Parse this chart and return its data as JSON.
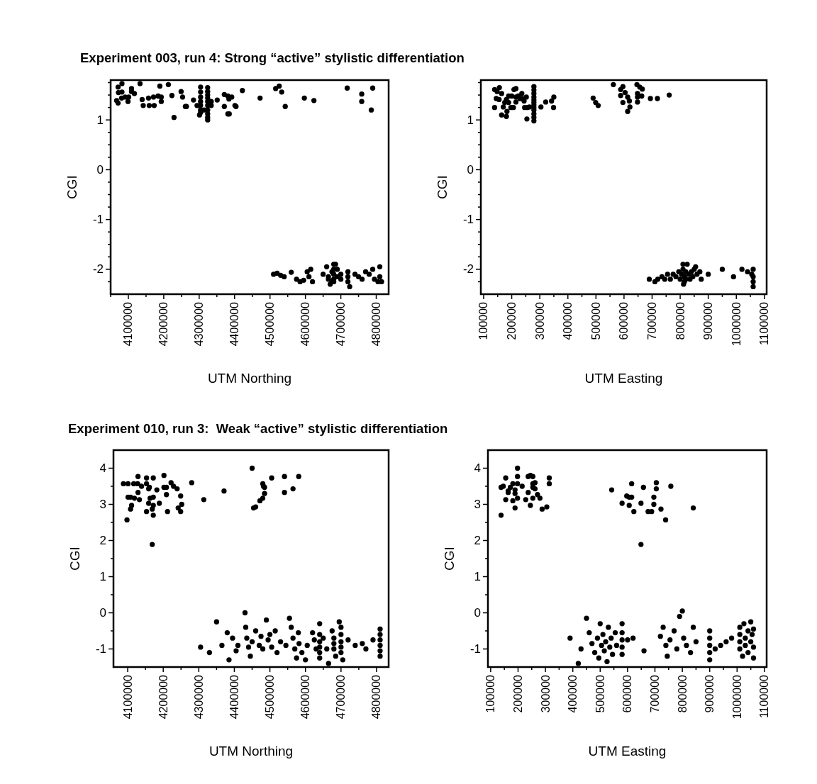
{
  "chart_data": [
    {
      "type": "scatter",
      "title": "Experiment 003, run 4: Strong “active” stylistic differentiation",
      "xlabel": "UTM Northing",
      "ylabel": "CGI",
      "marker": "circle",
      "color": "#000000",
      "xlim": [
        4050000,
        4835000
      ],
      "ylim": [
        -2.5,
        1.8
      ],
      "xticks": [
        {
          "value": 4050000,
          "label": null
        },
        4100000,
        {
          "value": 4150000,
          "label": null
        },
        4200000,
        {
          "value": 4250000,
          "label": null
        },
        4300000,
        {
          "value": 4350000,
          "label": null
        },
        4400000,
        {
          "value": 4450000,
          "label": null
        },
        4500000,
        {
          "value": 4550000,
          "label": null
        },
        4600000,
        {
          "value": 4650000,
          "label": null
        },
        4700000,
        {
          "value": 4750000,
          "label": null
        },
        4800000
      ],
      "yticks": [
        {
          "value": -2.25,
          "label": null
        },
        -2,
        {
          "value": -1.75,
          "label": null
        },
        {
          "value": -1.5,
          "label": null
        },
        {
          "value": -1.25,
          "label": null
        },
        -1,
        {
          "value": -0.75,
          "label": null
        },
        {
          "value": -0.5,
          "label": null
        },
        {
          "value": -0.25,
          "label": null
        },
        0,
        {
          "value": 0.25,
          "label": null
        },
        {
          "value": 0.5,
          "label": null
        },
        {
          "value": 0.75,
          "label": null
        },
        1,
        {
          "value": 1.25,
          "label": null
        },
        {
          "value": 1.5,
          "label": null
        },
        {
          "value": 1.75,
          "label": null
        }
      ],
      "x": [
        4071000,
        4082000,
        4072000,
        4082000,
        4067000,
        4071000,
        4081000,
        4091000,
        4101000,
        4099000,
        4109000,
        4109000,
        4117000,
        4133000,
        4139000,
        4142000,
        4157000,
        4159000,
        4171000,
        4173000,
        4184000,
        4189000,
        4193000,
        4193000,
        4213000,
        4223000,
        4229000,
        4249000,
        4253000,
        4261000,
        4264000,
        4284000,
        4294000,
        4301000,
        4304000,
        4304000,
        4304000,
        4304000,
        4304000,
        4304000,
        4304000,
        4314000,
        4324000,
        4324000,
        4324000,
        4324000,
        4324000,
        4324000,
        4324000,
        4324000,
        4324000,
        4324000,
        4334000,
        4334000,
        4351000,
        4371000,
        4371000,
        4381000,
        4384000,
        4392000,
        4401000,
        4404000,
        4381000,
        4385000,
        4422000,
        4472000,
        4516000,
        4526000,
        4533000,
        4543000,
        4597000,
        4624000,
        4718000,
        4759000,
        4759000,
        4786000,
        4790000,
        4510000,
        4520000,
        4530000,
        4540000,
        4560000,
        4575000,
        4585000,
        4595000,
        4605000,
        4610000,
        4615000,
        4620000,
        4650000,
        4660000,
        4665000,
        4670000,
        4675000,
        4680000,
        4680000,
        4680000,
        4680000,
        4680000,
        4685000,
        4690000,
        4690000,
        4700000,
        4720000,
        4720000,
        4720000,
        4725000,
        4740000,
        4750000,
        4760000,
        4770000,
        4780000,
        4790000,
        4795000,
        4805000,
        4810000,
        4810000,
        4815000,
        4665000,
        4675000,
        4700000
      ],
      "values": [
        1.66,
        1.73,
        1.55,
        1.56,
        1.39,
        1.34,
        1.44,
        1.46,
        1.46,
        1.37,
        1.63,
        1.57,
        1.53,
        1.73,
        1.41,
        1.29,
        1.44,
        1.29,
        1.46,
        1.29,
        1.48,
        1.68,
        1.46,
        1.37,
        1.71,
        1.49,
        1.05,
        1.57,
        1.46,
        1.27,
        1.27,
        1.4,
        1.29,
        1.1,
        1.66,
        1.56,
        1.46,
        1.37,
        1.29,
        1.2,
        1.15,
        1.2,
        1.65,
        1.57,
        1.5,
        1.44,
        1.37,
        1.29,
        1.2,
        1.12,
        1.05,
        1.0,
        1.37,
        1.29,
        1.4,
        1.51,
        1.27,
        1.48,
        1.42,
        1.46,
        1.29,
        1.27,
        1.12,
        1.12,
        1.59,
        1.44,
        1.63,
        1.68,
        1.56,
        1.27,
        1.44,
        1.39,
        1.64,
        1.52,
        1.37,
        1.2,
        1.64,
        -2.1,
        -2.08,
        -2.12,
        -2.15,
        -2.06,
        -2.2,
        -2.25,
        -2.22,
        -2.05,
        -2.15,
        -2.0,
        -2.25,
        -2.1,
        -1.95,
        -2.2,
        -2.3,
        -2.05,
        -1.9,
        -2.0,
        -2.1,
        -2.2,
        -2.25,
        -1.9,
        -2.15,
        -2.0,
        -2.2,
        -2.05,
        -2.15,
        -2.25,
        -2.35,
        -2.1,
        -2.15,
        -2.2,
        -2.05,
        -2.1,
        -2.0,
        -2.2,
        -2.25,
        -1.95,
        -2.15,
        -2.25,
        -2.15,
        -2.25,
        -2.1
      ]
    },
    {
      "type": "scatter",
      "xlabel": "UTM Easting",
      "ylabel": "CGI",
      "marker": "circle",
      "color": "#000000",
      "xlim": [
        90000,
        1108000
      ],
      "ylim": [
        -2.5,
        1.8
      ],
      "xticks": [
        100000,
        {
          "value": 150000,
          "label": null
        },
        200000,
        {
          "value": 250000,
          "label": null
        },
        300000,
        {
          "value": 350000,
          "label": null
        },
        400000,
        {
          "value": 450000,
          "label": null
        },
        500000,
        {
          "value": 550000,
          "label": null
        },
        600000,
        {
          "value": 650000,
          "label": null
        },
        700000,
        {
          "value": 750000,
          "label": null
        },
        800000,
        {
          "value": 850000,
          "label": null
        },
        900000,
        {
          "value": 950000,
          "label": null
        },
        1000000,
        {
          "value": 1050000,
          "label": null
        },
        1100000
      ],
      "yticks": [
        {
          "value": -2.25,
          "label": null
        },
        -2,
        {
          "value": -1.75,
          "label": null
        },
        {
          "value": -1.5,
          "label": null
        },
        {
          "value": -1.25,
          "label": null
        },
        -1,
        {
          "value": -0.75,
          "label": null
        },
        {
          "value": -0.5,
          "label": null
        },
        {
          "value": -0.25,
          "label": null
        },
        0,
        {
          "value": 0.25,
          "label": null
        },
        {
          "value": 0.5,
          "label": null
        },
        {
          "value": 0.75,
          "label": null
        },
        1,
        {
          "value": 1.25,
          "label": null
        },
        {
          "value": 1.5,
          "label": null
        },
        {
          "value": 1.75,
          "label": null
        }
      ],
      "x": [
        139000,
        148000,
        156000,
        164000,
        139000,
        145000,
        155000,
        164000,
        170000,
        175000,
        181000,
        183000,
        181000,
        189000,
        189000,
        197000,
        200000,
        206000,
        208000,
        215000,
        215000,
        215000,
        223000,
        229000,
        236000,
        237000,
        244000,
        246000,
        252000,
        254000,
        256000,
        263000,
        279000,
        279000,
        279000,
        279000,
        279000,
        279000,
        279000,
        279000,
        279000,
        279000,
        279000,
        279000,
        304000,
        321000,
        342000,
        350000,
        349000,
        490000,
        499000,
        508000,
        562000,
        596000,
        588000,
        604000,
        588000,
        596000,
        613000,
        619000,
        613000,
        621000,
        646000,
        648000,
        648000,
        648000,
        656000,
        665000,
        663000,
        694000,
        719000,
        761000,
        690000,
        710000,
        720000,
        735000,
        745000,
        755000,
        765000,
        775000,
        785000,
        795000,
        800000,
        805000,
        810000,
        810000,
        815000,
        815000,
        820000,
        820000,
        825000,
        830000,
        835000,
        840000,
        845000,
        850000,
        855000,
        860000,
        870000,
        875000,
        900000,
        950000,
        990000,
        1020000,
        1040000,
        1055000,
        1060000,
        1060000,
        1060000,
        1060000,
        812000
      ],
      "values": [
        1.61,
        1.57,
        1.65,
        1.53,
        1.25,
        1.43,
        1.41,
        1.1,
        1.26,
        1.35,
        1.41,
        1.17,
        1.07,
        1.35,
        1.48,
        1.25,
        1.48,
        1.25,
        1.61,
        1.63,
        1.46,
        1.36,
        1.48,
        1.43,
        1.53,
        1.43,
        1.38,
        1.25,
        1.46,
        1.02,
        1.25,
        1.26,
        1.67,
        1.6,
        1.53,
        1.46,
        1.4,
        1.35,
        1.3,
        1.25,
        1.2,
        1.12,
        1.05,
        0.98,
        1.26,
        1.36,
        1.38,
        1.46,
        1.25,
        1.44,
        1.35,
        1.29,
        1.71,
        1.67,
        1.61,
        1.55,
        1.49,
        1.35,
        1.46,
        1.38,
        1.17,
        1.26,
        1.71,
        1.53,
        1.46,
        1.36,
        1.66,
        1.62,
        1.48,
        1.43,
        1.43,
        1.5,
        -2.2,
        -2.25,
        -2.2,
        -2.15,
        -2.2,
        -2.1,
        -2.2,
        -2.1,
        -2.15,
        -2.05,
        -2.2,
        -2.1,
        -1.9,
        -2.0,
        -2.15,
        -2.25,
        -2.05,
        -2.2,
        -1.9,
        -2.1,
        -2.2,
        -2.05,
        -2.15,
        -2.0,
        -1.95,
        -2.1,
        -2.05,
        -2.2,
        -2.1,
        -2.0,
        -2.15,
        -2.0,
        -2.05,
        -2.1,
        -2.0,
        -2.15,
        -2.25,
        -2.35,
        -2.3
      ]
    },
    {
      "type": "scatter",
      "title": "Experiment 010, run 3:  Weak “active” stylistic differentiation",
      "xlabel": "UTM Northing",
      "ylabel": "CGI",
      "marker": "circle",
      "color": "#000000",
      "xlim": [
        4060000,
        4834000
      ],
      "ylim": [
        -1.5,
        4.5
      ],
      "xticks": [
        4100000,
        {
          "value": 4150000,
          "label": null
        },
        4200000,
        {
          "value": 4250000,
          "label": null
        },
        4300000,
        {
          "value": 4350000,
          "label": null
        },
        4400000,
        {
          "value": 4450000,
          "label": null
        },
        4500000,
        {
          "value": 4550000,
          "label": null
        },
        4600000,
        {
          "value": 4650000,
          "label": null
        },
        4700000,
        {
          "value": 4750000,
          "label": null
        },
        4800000
      ],
      "yticks": [
        -1,
        {
          "value": -0.5,
          "label": null
        },
        0,
        {
          "value": 0.5,
          "label": null
        },
        1,
        {
          "value": 1.5,
          "label": null
        },
        2,
        {
          "value": 2.5,
          "label": null
        },
        3,
        {
          "value": 3.5,
          "label": null
        },
        4
      ],
      "x": [
        4088000,
        4101000,
        4117000,
        4128000,
        4129000,
        4153000,
        4172000,
        4202000,
        4153000,
        4139000,
        4159000,
        4161000,
        4182000,
        4202000,
        4209000,
        4222000,
        4229000,
        4239000,
        4129000,
        4133000,
        4101000,
        4108000,
        4119000,
        4111000,
        4108000,
        4098000,
        4159000,
        4163000,
        4172000,
        4172000,
        4169000,
        4153000,
        4172000,
        4189000,
        4209000,
        4212000,
        4242000,
        4249000,
        4252000,
        4249000,
        4169000,
        4280000,
        4314000,
        4371000,
        4450000,
        4454000,
        4460000,
        4472000,
        4480000,
        4480000,
        4482000,
        4485000,
        4485000,
        4505000,
        4541000,
        4541000,
        4565000,
        4581000,
        4305000,
        4330000,
        4350000,
        4365000,
        4380000,
        4385000,
        4395000,
        4405000,
        4410000,
        4430000,
        4432000,
        4435000,
        4440000,
        4445000,
        4450000,
        4460000,
        4470000,
        4475000,
        4480000,
        4490000,
        4495000,
        4500000,
        4505000,
        4515000,
        4520000,
        4530000,
        4545000,
        4555000,
        4560000,
        4565000,
        4570000,
        4575000,
        4580000,
        4582000,
        4590000,
        4600000,
        4605000,
        4620000,
        4625000,
        4630000,
        4640000,
        4640000,
        4640000,
        4640000,
        4640000,
        4640000,
        4650000,
        4660000,
        4665000,
        4675000,
        4680000,
        4680000,
        4680000,
        4685000,
        4695000,
        4700000,
        4700000,
        4700000,
        4700000,
        4700000,
        4705000,
        4720000,
        4740000,
        4760000,
        4770000,
        4790000,
        4810000,
        4810000,
        4810000,
        4810000,
        4810000,
        4810000
      ],
      "values": [
        3.57,
        3.57,
        3.57,
        3.57,
        3.77,
        3.73,
        3.73,
        3.8,
        3.57,
        3.5,
        3.43,
        3.47,
        3.4,
        3.47,
        3.47,
        3.6,
        3.5,
        3.43,
        3.33,
        3.13,
        3.2,
        3.2,
        3.17,
        2.97,
        2.87,
        2.57,
        3.03,
        3.17,
        3.2,
        2.97,
        2.87,
        2.8,
        2.7,
        3.03,
        3.27,
        2.8,
        2.9,
        3.23,
        3.0,
        2.8,
        1.89,
        3.6,
        3.13,
        3.37,
        4.0,
        2.9,
        2.93,
        3.1,
        3.17,
        3.57,
        3.5,
        3.47,
        3.3,
        3.73,
        3.77,
        3.33,
        3.43,
        3.77,
        -0.95,
        -1.1,
        -0.25,
        -0.9,
        -0.55,
        -1.3,
        -0.7,
        -1.05,
        -0.9,
        0.0,
        -0.4,
        -0.7,
        -0.95,
        -1.2,
        -0.8,
        -0.5,
        -0.9,
        -0.65,
        -1.0,
        -0.2,
        -0.75,
        -0.6,
        -0.95,
        -0.5,
        -1.1,
        -0.8,
        -0.9,
        -0.15,
        -0.4,
        -0.7,
        -1.0,
        -1.25,
        -0.55,
        -0.85,
        -1.1,
        -1.3,
        -0.9,
        -0.55,
        -0.75,
        -1.0,
        -0.3,
        -0.6,
        -0.8,
        -0.95,
        -1.1,
        -1.25,
        -0.7,
        -1.0,
        -1.4,
        -0.5,
        -0.7,
        -0.85,
        -1.0,
        -1.2,
        -0.25,
        -0.4,
        -0.6,
        -0.8,
        -0.95,
        -1.1,
        -1.3,
        -0.75,
        -0.9,
        -0.85,
        -1.0,
        -0.75,
        -0.45,
        -0.6,
        -0.75,
        -0.9,
        -1.05,
        -1.2
      ]
    },
    {
      "type": "scatter",
      "xlabel": "UTM Easting",
      "ylabel": "CGI",
      "marker": "circle",
      "color": "#000000",
      "xlim": [
        90000,
        1108000
      ],
      "ylim": [
        -1.5,
        4.5
      ],
      "xticks": [
        100000,
        {
          "value": 150000,
          "label": null
        },
        200000,
        {
          "value": 250000,
          "label": null
        },
        300000,
        {
          "value": 350000,
          "label": null
        },
        400000,
        {
          "value": 450000,
          "label": null
        },
        500000,
        {
          "value": 550000,
          "label": null
        },
        600000,
        {
          "value": 650000,
          "label": null
        },
        700000,
        {
          "value": 750000,
          "label": null
        },
        800000,
        {
          "value": 850000,
          "label": null
        },
        900000,
        {
          "value": 950000,
          "label": null
        },
        1000000,
        {
          "value": 1050000,
          "label": null
        },
        1100000
      ],
      "yticks": [
        -1,
        {
          "value": -0.5,
          "label": null
        },
        0,
        {
          "value": 0.5,
          "label": null
        },
        1,
        {
          "value": 1.5,
          "label": null
        },
        2,
        {
          "value": 2.5,
          "label": null
        },
        3,
        {
          "value": 3.5,
          "label": null
        },
        4
      ],
      "x": [
        138000,
        138000,
        146000,
        155000,
        155000,
        164000,
        164000,
        172000,
        181000,
        181000,
        189000,
        189000,
        189000,
        198000,
        198000,
        198000,
        198000,
        215000,
        228000,
        237000,
        237000,
        245000,
        245000,
        254000,
        254000,
        254000,
        254000,
        262000,
        262000,
        271000,
        280000,
        288000,
        305000,
        314000,
        314000,
        542000,
        580000,
        597000,
        606000,
        606000,
        615000,
        615000,
        623000,
        649000,
        649000,
        658000,
        675000,
        688000,
        696000,
        696000,
        705000,
        705000,
        722000,
        739000,
        758000,
        840000,
        390000,
        420000,
        430000,
        450000,
        460000,
        470000,
        480000,
        490000,
        495000,
        500000,
        505000,
        510000,
        515000,
        520000,
        525000,
        530000,
        535000,
        540000,
        545000,
        555000,
        560000,
        580000,
        580000,
        580000,
        580000,
        580000,
        600000,
        620000,
        660000,
        720000,
        730000,
        740000,
        745000,
        755000,
        770000,
        780000,
        790000,
        800000,
        805000,
        815000,
        830000,
        840000,
        850000,
        900000,
        900000,
        900000,
        900000,
        900000,
        920000,
        940000,
        960000,
        980000,
        1010000,
        1010000,
        1010000,
        1010000,
        1020000,
        1025000,
        1030000,
        1030000,
        1040000,
        1040000,
        1050000,
        1050000,
        1055000,
        1060000,
        1060000,
        1060000
      ],
      "values": [
        2.7,
        3.47,
        3.5,
        3.73,
        3.13,
        3.37,
        3.33,
        3.47,
        3.57,
        3.1,
        3.4,
        3.3,
        2.9,
        4.0,
        3.77,
        3.57,
        3.17,
        3.5,
        3.13,
        3.77,
        3.33,
        3.8,
        2.97,
        3.77,
        3.57,
        3.47,
        3.17,
        3.6,
        3.43,
        3.27,
        3.17,
        2.87,
        2.93,
        3.73,
        3.57,
        3.4,
        3.03,
        3.23,
        3.2,
        2.97,
        3.57,
        3.2,
        2.8,
        3.03,
        1.89,
        3.47,
        2.8,
        2.8,
        3.2,
        3.0,
        3.6,
        3.43,
        2.87,
        2.57,
        3.5,
        2.9,
        -0.7,
        -1.4,
        -1.0,
        -0.15,
        -0.55,
        -0.85,
        -1.1,
        -0.7,
        -1.25,
        -0.3,
        -0.9,
        -0.6,
        -1.05,
        -0.8,
        -1.35,
        -0.4,
        -0.95,
        -0.7,
        -1.15,
        -0.55,
        -0.9,
        -0.3,
        -0.55,
        -0.75,
        -0.95,
        -1.15,
        -0.75,
        -0.7,
        -1.05,
        -0.65,
        -0.4,
        -0.9,
        -1.2,
        -0.75,
        -0.5,
        -1.0,
        -0.1,
        0.05,
        -0.7,
        -0.9,
        -1.1,
        -0.4,
        -0.8,
        -0.5,
        -0.7,
        -0.9,
        -1.1,
        -1.3,
        -1.0,
        -0.9,
        -0.8,
        -0.7,
        -0.4,
        -0.6,
        -0.8,
        -1.0,
        -1.2,
        -0.3,
        -0.7,
        -0.9,
        -0.5,
        -1.1,
        -0.25,
        -0.8,
        -0.6,
        -0.45,
        -0.95,
        -1.25
      ]
    }
  ]
}
